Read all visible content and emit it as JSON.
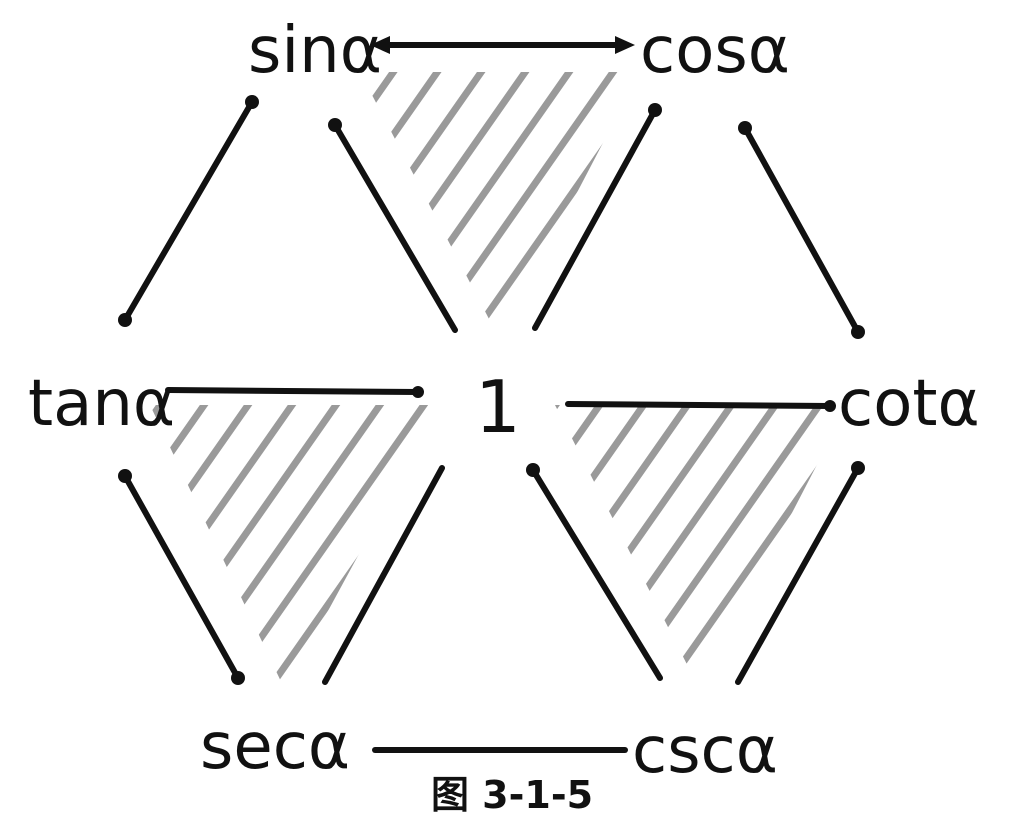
{
  "nodes": {
    "sin": "sinα",
    "cos": "cosα",
    "tan": "tanα",
    "center": "1",
    "cot": "cotα",
    "sec": "secα",
    "csc": "cscα"
  },
  "caption": "图 3-1-5",
  "colors": {
    "stroke": "#111111",
    "hatch": "#9a9a9a",
    "background": "#ffffff"
  }
}
